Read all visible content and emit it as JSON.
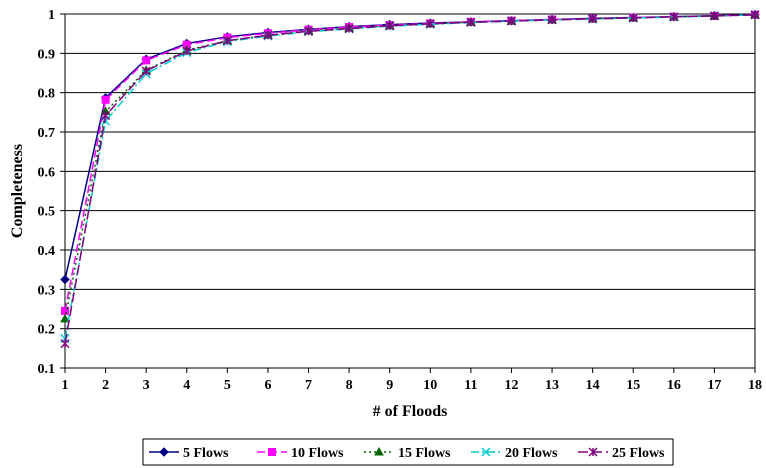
{
  "chart_data": {
    "type": "line",
    "xlabel": "# of Floods",
    "ylabel": "Completeness",
    "ylim": [
      0.1,
      1.0
    ],
    "xlim": [
      1,
      18
    ],
    "y_ticks": [
      "0.1",
      "0.2",
      "0.3",
      "0.4",
      "0.5",
      "0.6",
      "0.7",
      "0.8",
      "0.9",
      "1"
    ],
    "x_ticks": [
      "1",
      "2",
      "3",
      "4",
      "5",
      "6",
      "7",
      "8",
      "9",
      "10",
      "11",
      "12",
      "13",
      "14",
      "15",
      "16",
      "17",
      "18"
    ],
    "grid": "horizontal",
    "legend_position": "bottom",
    "x": [
      1,
      2,
      3,
      4,
      5,
      6,
      7,
      8,
      9,
      10,
      11,
      12,
      13,
      14,
      15,
      16,
      17,
      18
    ],
    "series": [
      {
        "name": "5 Flows",
        "color": "#000080",
        "marker": "diamond",
        "dash": "",
        "values": [
          0.325,
          0.787,
          0.885,
          0.925,
          0.942,
          0.953,
          0.961,
          0.968,
          0.973,
          0.977,
          0.98,
          0.983,
          0.986,
          0.989,
          0.991,
          0.993,
          0.996,
          0.998
        ]
      },
      {
        "name": "10 Flows",
        "color": "#ff00ff",
        "marker": "square",
        "dash": "8,4",
        "values": [
          0.245,
          0.782,
          0.882,
          0.922,
          0.94,
          0.951,
          0.96,
          0.967,
          0.972,
          0.976,
          0.98,
          0.983,
          0.986,
          0.988,
          0.991,
          0.993,
          0.995,
          0.998
        ]
      },
      {
        "name": "15 Flows",
        "color": "#006400",
        "marker": "triangle",
        "dash": "2,3",
        "values": [
          0.225,
          0.752,
          0.857,
          0.908,
          0.932,
          0.946,
          0.957,
          0.964,
          0.97,
          0.975,
          0.979,
          0.982,
          0.985,
          0.988,
          0.99,
          0.993,
          0.995,
          0.998
        ]
      },
      {
        "name": "20 Flows",
        "color": "#00cccc",
        "marker": "x",
        "dash": "8,3,2,3",
        "values": [
          0.175,
          0.728,
          0.848,
          0.902,
          0.93,
          0.944,
          0.955,
          0.962,
          0.969,
          0.974,
          0.978,
          0.982,
          0.985,
          0.987,
          0.99,
          0.992,
          0.995,
          0.998
        ]
      },
      {
        "name": "25 Flows",
        "color": "#800080",
        "marker": "star",
        "dash": "10,4",
        "values": [
          0.162,
          0.742,
          0.855,
          0.906,
          0.932,
          0.946,
          0.956,
          0.963,
          0.97,
          0.975,
          0.979,
          0.982,
          0.985,
          0.988,
          0.99,
          0.993,
          0.995,
          0.998
        ]
      }
    ]
  }
}
